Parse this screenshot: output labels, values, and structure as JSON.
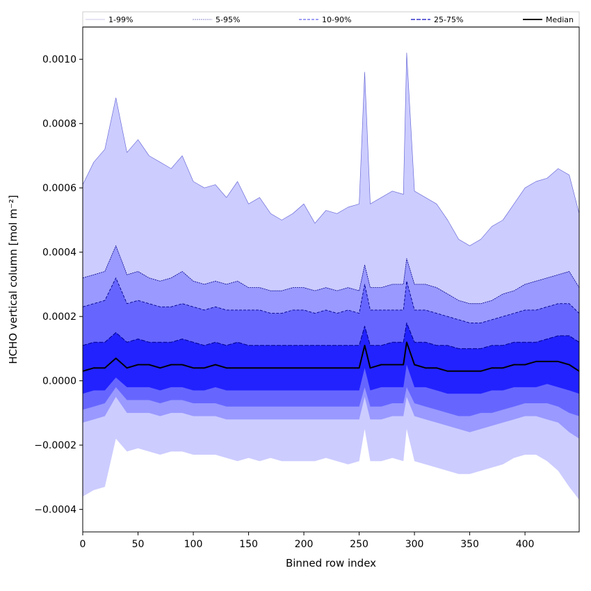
{
  "chart_data": {
    "type": "area",
    "xlabel": "Binned row index",
    "ylabel": "HCHO vertical column [mol m⁻²]",
    "xlim": [
      0,
      449
    ],
    "ylim": [
      -0.00047,
      0.0011
    ],
    "x_ticks": [
      0,
      50,
      100,
      150,
      200,
      250,
      300,
      350,
      400
    ],
    "x_tick_labels": [
      "0",
      "50",
      "100",
      "150",
      "200",
      "250",
      "300",
      "350",
      "400"
    ],
    "y_ticks": [
      -0.0004,
      -0.0002,
      0.0,
      0.0002,
      0.0004,
      0.0006,
      0.0008,
      0.001
    ],
    "y_tick_labels": [
      "−0.0004",
      "−0.0002",
      "0.0000",
      "0.0002",
      "0.0004",
      "0.0006",
      "0.0008",
      "0.0010"
    ],
    "grid": false,
    "legend_position": "top",
    "legend": [
      "1-99%",
      "5-95%",
      "10-90%",
      "25-75%",
      "Median"
    ],
    "colors": {
      "band_1_99": "#ccccff",
      "band_5_95": "#9999ff",
      "band_10_90": "#6666ff",
      "band_25_75": "#2222ff",
      "band_line": "#00008b",
      "median": "#000000"
    },
    "x": [
      0,
      10,
      20,
      30,
      40,
      50,
      60,
      70,
      80,
      90,
      100,
      110,
      120,
      130,
      140,
      150,
      160,
      170,
      180,
      190,
      200,
      210,
      220,
      230,
      240,
      250,
      255,
      260,
      270,
      280,
      290,
      293,
      300,
      310,
      320,
      330,
      340,
      350,
      360,
      370,
      380,
      390,
      400,
      410,
      420,
      430,
      440,
      449
    ],
    "series": [
      {
        "name": "1-99% upper",
        "values": [
          0.00061,
          0.00068,
          0.00072,
          0.00088,
          0.00071,
          0.00075,
          0.0007,
          0.00068,
          0.00066,
          0.0007,
          0.00062,
          0.0006,
          0.00061,
          0.00057,
          0.00062,
          0.00055,
          0.00057,
          0.00052,
          0.0005,
          0.00052,
          0.00055,
          0.00049,
          0.00053,
          0.00052,
          0.00054,
          0.00055,
          0.00096,
          0.00055,
          0.00057,
          0.00059,
          0.00058,
          0.00102,
          0.00059,
          0.00057,
          0.00055,
          0.0005,
          0.00044,
          0.00042,
          0.00044,
          0.00048,
          0.0005,
          0.00055,
          0.0006,
          0.00062,
          0.00063,
          0.00066,
          0.00064,
          0.00052
        ]
      },
      {
        "name": "5-95% upper",
        "values": [
          0.00032,
          0.00033,
          0.00034,
          0.00042,
          0.00033,
          0.00034,
          0.00032,
          0.00031,
          0.00032,
          0.00034,
          0.00031,
          0.0003,
          0.00031,
          0.0003,
          0.00031,
          0.00029,
          0.00029,
          0.00028,
          0.00028,
          0.00029,
          0.00029,
          0.00028,
          0.00029,
          0.00028,
          0.00029,
          0.00028,
          0.00036,
          0.00029,
          0.00029,
          0.0003,
          0.0003,
          0.00038,
          0.0003,
          0.0003,
          0.00029,
          0.00027,
          0.00025,
          0.00024,
          0.00024,
          0.00025,
          0.00027,
          0.00028,
          0.0003,
          0.00031,
          0.00032,
          0.00033,
          0.00034,
          0.00029
        ]
      },
      {
        "name": "10-90% upper",
        "values": [
          0.00023,
          0.00024,
          0.00025,
          0.00032,
          0.00024,
          0.00025,
          0.00024,
          0.00023,
          0.00023,
          0.00024,
          0.00023,
          0.00022,
          0.00023,
          0.00022,
          0.00022,
          0.00022,
          0.00022,
          0.00021,
          0.00021,
          0.00022,
          0.00022,
          0.00021,
          0.00022,
          0.00021,
          0.00022,
          0.00021,
          0.0003,
          0.00022,
          0.00022,
          0.00022,
          0.00022,
          0.00031,
          0.00022,
          0.00022,
          0.00021,
          0.0002,
          0.00019,
          0.00018,
          0.00018,
          0.00019,
          0.0002,
          0.00021,
          0.00022,
          0.00022,
          0.00023,
          0.00024,
          0.00024,
          0.00021
        ]
      },
      {
        "name": "25-75% upper",
        "values": [
          0.00011,
          0.00012,
          0.00012,
          0.00015,
          0.00012,
          0.00013,
          0.00012,
          0.00012,
          0.00012,
          0.00013,
          0.00012,
          0.00011,
          0.00012,
          0.00011,
          0.00012,
          0.00011,
          0.00011,
          0.00011,
          0.00011,
          0.00011,
          0.00011,
          0.00011,
          0.00011,
          0.00011,
          0.00011,
          0.00011,
          0.00017,
          0.00011,
          0.00011,
          0.00012,
          0.00012,
          0.00018,
          0.00012,
          0.00012,
          0.00011,
          0.00011,
          0.0001,
          0.0001,
          0.0001,
          0.00011,
          0.00011,
          0.00012,
          0.00012,
          0.00012,
          0.00013,
          0.00014,
          0.00014,
          0.00012
        ]
      },
      {
        "name": "Median",
        "values": [
          3e-05,
          4e-05,
          4e-05,
          7e-05,
          4e-05,
          5e-05,
          5e-05,
          4e-05,
          5e-05,
          5e-05,
          4e-05,
          4e-05,
          5e-05,
          4e-05,
          4e-05,
          4e-05,
          4e-05,
          4e-05,
          4e-05,
          4e-05,
          4e-05,
          4e-05,
          4e-05,
          4e-05,
          4e-05,
          4e-05,
          0.00011,
          4e-05,
          5e-05,
          5e-05,
          5e-05,
          0.00012,
          5e-05,
          4e-05,
          4e-05,
          3e-05,
          3e-05,
          3e-05,
          3e-05,
          4e-05,
          4e-05,
          5e-05,
          5e-05,
          6e-05,
          6e-05,
          6e-05,
          5e-05,
          3e-05
        ]
      },
      {
        "name": "25-75% lower",
        "values": [
          -4e-05,
          -3e-05,
          -3e-05,
          1e-05,
          -2e-05,
          -2e-05,
          -2e-05,
          -3e-05,
          -2e-05,
          -2e-05,
          -3e-05,
          -3e-05,
          -2e-05,
          -3e-05,
          -3e-05,
          -3e-05,
          -3e-05,
          -3e-05,
          -3e-05,
          -3e-05,
          -3e-05,
          -3e-05,
          -3e-05,
          -3e-05,
          -3e-05,
          -3e-05,
          4e-05,
          -3e-05,
          -2e-05,
          -2e-05,
          -2e-05,
          5e-05,
          -2e-05,
          -2e-05,
          -3e-05,
          -4e-05,
          -4e-05,
          -4e-05,
          -4e-05,
          -3e-05,
          -3e-05,
          -2e-05,
          -2e-05,
          -2e-05,
          -1e-05,
          -2e-05,
          -3e-05,
          -4e-05
        ]
      },
      {
        "name": "10-90% lower",
        "values": [
          -9e-05,
          -8e-05,
          -7e-05,
          -2e-05,
          -6e-05,
          -6e-05,
          -6e-05,
          -7e-05,
          -6e-05,
          -6e-05,
          -7e-05,
          -7e-05,
          -7e-05,
          -8e-05,
          -8e-05,
          -8e-05,
          -8e-05,
          -8e-05,
          -8e-05,
          -8e-05,
          -8e-05,
          -8e-05,
          -8e-05,
          -8e-05,
          -8e-05,
          -8e-05,
          -2e-05,
          -8e-05,
          -8e-05,
          -7e-05,
          -7e-05,
          -2e-05,
          -7e-05,
          -8e-05,
          -9e-05,
          -0.0001,
          -0.00011,
          -0.00011,
          -0.0001,
          -0.0001,
          -9e-05,
          -8e-05,
          -7e-05,
          -7e-05,
          -7e-05,
          -8e-05,
          -0.0001,
          -0.00011
        ]
      },
      {
        "name": "5-95% lower",
        "values": [
          -0.00013,
          -0.00012,
          -0.00011,
          -5e-05,
          -0.0001,
          -0.0001,
          -0.0001,
          -0.00011,
          -0.0001,
          -0.0001,
          -0.00011,
          -0.00011,
          -0.00011,
          -0.00012,
          -0.00012,
          -0.00012,
          -0.00012,
          -0.00012,
          -0.00012,
          -0.00012,
          -0.00012,
          -0.00012,
          -0.00012,
          -0.00012,
          -0.00012,
          -0.00012,
          -5e-05,
          -0.00012,
          -0.00012,
          -0.00011,
          -0.00011,
          -5e-05,
          -0.00011,
          -0.00012,
          -0.00013,
          -0.00014,
          -0.00015,
          -0.00016,
          -0.00015,
          -0.00014,
          -0.00013,
          -0.00012,
          -0.00011,
          -0.00011,
          -0.00012,
          -0.00013,
          -0.00016,
          -0.00018
        ]
      },
      {
        "name": "1-99% lower",
        "values": [
          -0.00036,
          -0.00034,
          -0.00033,
          -0.00018,
          -0.00022,
          -0.00021,
          -0.00022,
          -0.00023,
          -0.00022,
          -0.00022,
          -0.00023,
          -0.00023,
          -0.00023,
          -0.00024,
          -0.00025,
          -0.00024,
          -0.00025,
          -0.00024,
          -0.00025,
          -0.00025,
          -0.00025,
          -0.00025,
          -0.00024,
          -0.00025,
          -0.00026,
          -0.00025,
          -0.00015,
          -0.00025,
          -0.00025,
          -0.00024,
          -0.00025,
          -0.00015,
          -0.00025,
          -0.00026,
          -0.00027,
          -0.00028,
          -0.00029,
          -0.00029,
          -0.00028,
          -0.00027,
          -0.00026,
          -0.00024,
          -0.00023,
          -0.00023,
          -0.00025,
          -0.00028,
          -0.00033,
          -0.00037
        ]
      }
    ]
  }
}
